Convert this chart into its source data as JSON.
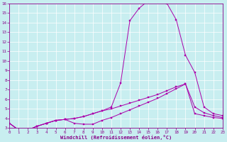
{
  "xlabel": "Windchill (Refroidissement éolien,°C)",
  "background_color": "#c8eef0",
  "grid_color": "#aadddd",
  "line_color": "#aa00aa",
  "xmin": 0,
  "xmax": 23,
  "ymin": 3,
  "ymax": 16,
  "line1_x": [
    0,
    1,
    2,
    3,
    4,
    5,
    6,
    7,
    8,
    9,
    10,
    11,
    12,
    13,
    14,
    15,
    16,
    17,
    18,
    19,
    20,
    21,
    22,
    23
  ],
  "line1_y": [
    3.5,
    2.8,
    2.8,
    3.2,
    3.5,
    3.8,
    3.9,
    4.0,
    4.2,
    4.5,
    4.8,
    5.2,
    7.7,
    14.2,
    15.5,
    16.3,
    16.3,
    16.0,
    14.3,
    10.6,
    8.8,
    5.2,
    4.5,
    4.3
  ],
  "line2_x": [
    0,
    1,
    2,
    3,
    4,
    5,
    6,
    7,
    8,
    9,
    10,
    11,
    12,
    13,
    14,
    15,
    16,
    17,
    18,
    19,
    20,
    21,
    22,
    23
  ],
  "line2_y": [
    3.5,
    2.8,
    2.8,
    3.2,
    3.5,
    3.8,
    3.9,
    3.5,
    3.4,
    3.4,
    3.8,
    4.1,
    4.5,
    4.9,
    5.3,
    5.7,
    6.1,
    6.6,
    7.1,
    7.6,
    5.2,
    4.6,
    4.3,
    4.1
  ],
  "line3_x": [
    0,
    1,
    2,
    3,
    4,
    5,
    6,
    7,
    8,
    9,
    10,
    11,
    12,
    13,
    14,
    15,
    16,
    17,
    18,
    19,
    20,
    21,
    22,
    23
  ],
  "line3_y": [
    3.5,
    2.8,
    2.8,
    3.2,
    3.5,
    3.8,
    3.9,
    4.0,
    4.2,
    4.5,
    4.8,
    5.0,
    5.3,
    5.6,
    5.9,
    6.2,
    6.5,
    6.9,
    7.3,
    7.6,
    4.5,
    4.3,
    4.1,
    4.0
  ]
}
